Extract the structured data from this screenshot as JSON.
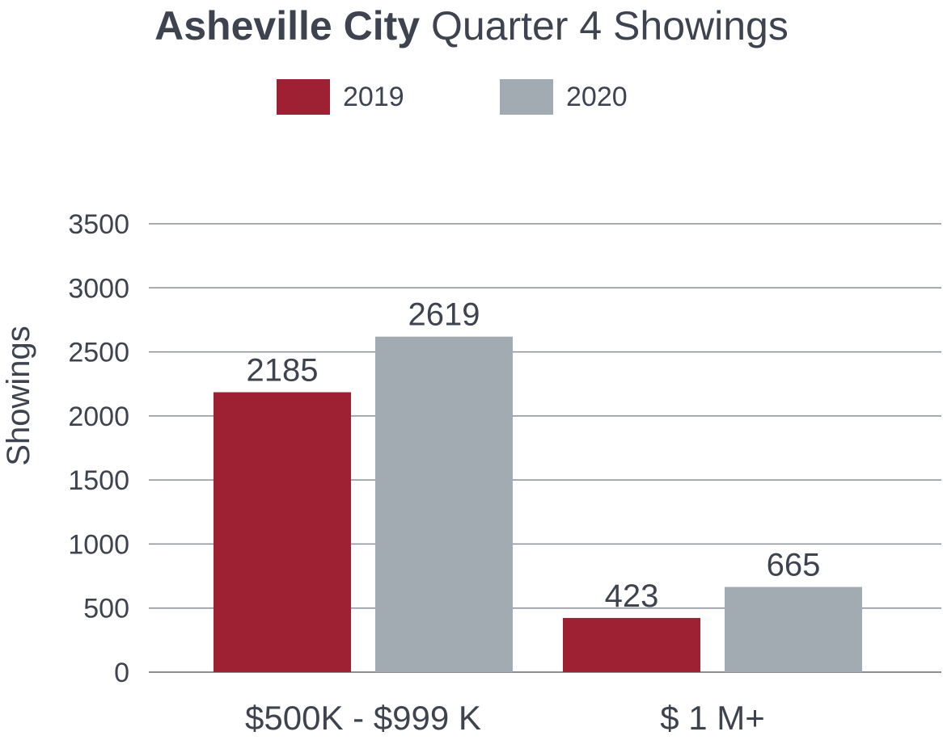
{
  "chart_data": {
    "type": "bar",
    "title_bold": "Asheville City",
    "title_rest": "Quarter 4 Showings",
    "ylabel": "Showings",
    "xlabel": "",
    "categories": [
      "$500K - $999 K",
      "$ 1 M+"
    ],
    "series": [
      {
        "name": "2019",
        "color": "#9e2133",
        "values": [
          2185,
          423
        ]
      },
      {
        "name": "2020",
        "color": "#a2abb1",
        "values": [
          2619,
          665
        ]
      }
    ],
    "ylim": [
      0,
      3500
    ],
    "yticks": [
      0,
      500,
      1000,
      1500,
      2000,
      2500,
      3000,
      3500
    ],
    "grid": true,
    "legend": "top-center"
  },
  "colors": {
    "text": "#3d4450",
    "grid": "#8a8f95"
  }
}
